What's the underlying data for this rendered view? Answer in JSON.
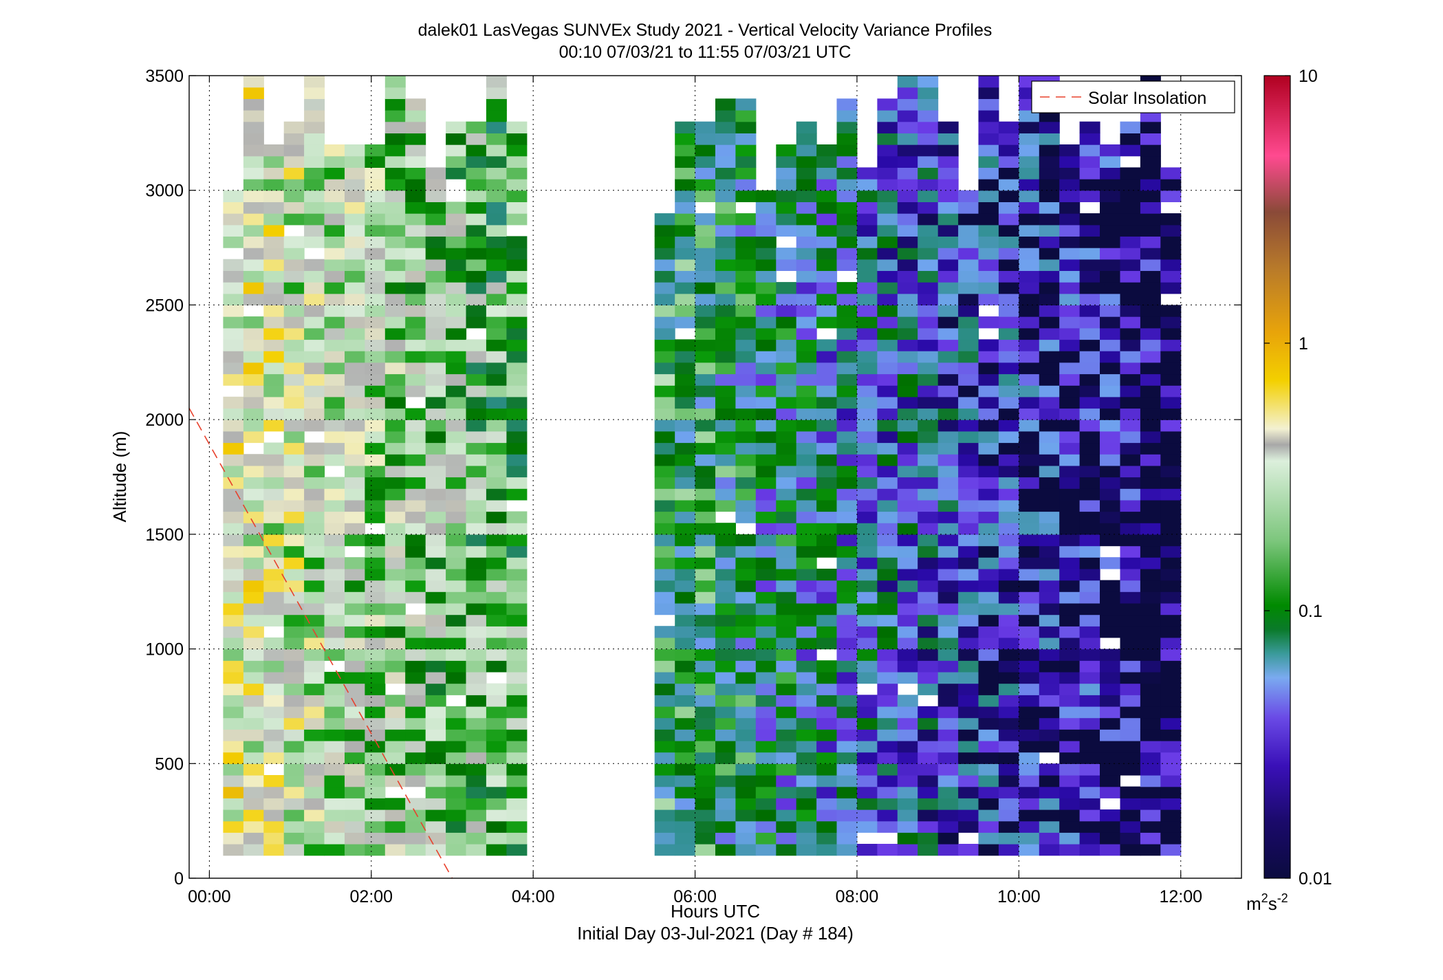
{
  "header": {
    "title_line1": "dalek01 LasVegas SUNVEx Study 2021 - Vertical Velocity Variance Profiles",
    "title_line2": "00:10 07/03/21 to 11:55 07/03/21  UTC"
  },
  "footer": {
    "xlabel": "Hours UTC",
    "subtitle": "Initial Day 03-Jul-2021 (Day # 184)"
  },
  "colorbar": {
    "ticks": [
      "10",
      "1",
      "0.1",
      "0.01"
    ],
    "unit_base": "m",
    "unit_sup1": "2",
    "unit_mid": "s",
    "unit_sup2": "-2"
  },
  "legend": {
    "entry": "Solar Insolation"
  },
  "chart_data": {
    "type": "heatmap",
    "xlabel": "Hours UTC",
    "ylabel": "Altitude (m)",
    "xlim": [
      -0.25,
      12.75
    ],
    "ylim": [
      0,
      3500
    ],
    "xticks": [
      0,
      2,
      4,
      6,
      8,
      10,
      12
    ],
    "xtick_labels": [
      "00:00",
      "02:00",
      "04:00",
      "06:00",
      "08:00",
      "10:00",
      "12:00"
    ],
    "yticks": [
      0,
      500,
      1000,
      1500,
      2000,
      2500,
      3000,
      3500
    ],
    "ytick_labels": [
      "0",
      "500",
      "1000",
      "1500",
      "2000",
      "2500",
      "3000",
      "3500"
    ],
    "grid": true,
    "legend_position": "top-right",
    "colorscale": "log",
    "clim": [
      0.01,
      10
    ],
    "colormap_stops": [
      "#0b0b3f",
      "#2a0aa8",
      "#6a3be6",
      "#6fa4ee",
      "#2f8f8f",
      "#006d00",
      "#0a9a0a",
      "#8fcf8f",
      "#d9ecd9",
      "#b0b0b0",
      "#f1efc9",
      "#f4d000",
      "#e0a010",
      "#a86a2a",
      "#8a4a3a",
      "#ff3f8a",
      "#b00020"
    ],
    "time_step_hours": 0.25,
    "altitude_step_m": 50,
    "segments": [
      {
        "start_hour": 0.17,
        "end_hour": 3.92,
        "altitude_min_m": 100,
        "level_start": 0.5,
        "level_end": 0.15
      },
      {
        "start_hour": 5.5,
        "end_hour": 11.92,
        "altitude_min_m": 100,
        "level_start": 0.1,
        "level_end": 0.01
      }
    ],
    "solar_insolation": {
      "name": "Solar Insolation",
      "x": [
        -0.25,
        3.0
      ],
      "y": [
        2050,
        0
      ]
    }
  }
}
